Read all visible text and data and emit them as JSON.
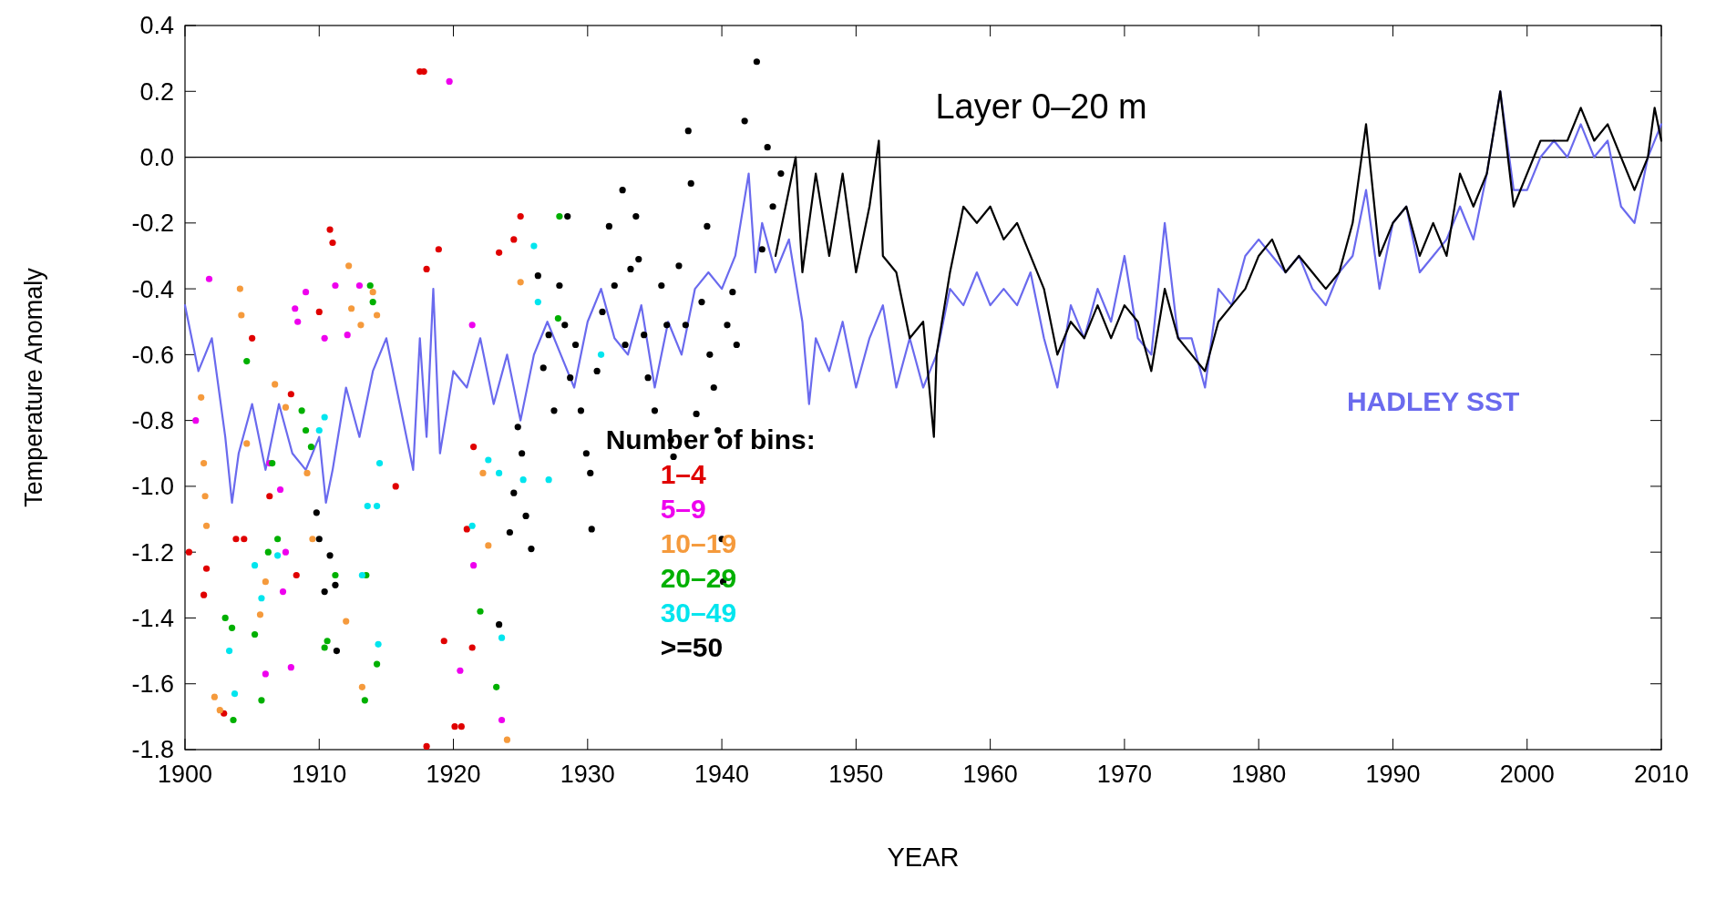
{
  "chart_data": {
    "type": "scatter",
    "title": "Layer 0–20 m",
    "xlabel": "YEAR",
    "ylabel": "Temperature Anomaly",
    "legend_title": "Number of bins:",
    "legend": "bottom",
    "grid": false,
    "xlim": [
      1900,
      2010
    ],
    "xticks": [
      1900,
      1910,
      1920,
      1930,
      1940,
      1950,
      1960,
      1970,
      1980,
      1990,
      2000,
      2010
    ],
    "ylim": [
      -1.8,
      0.4
    ],
    "yticks": [
      -1.8,
      -1.6,
      -1.4,
      -1.2,
      {
        "value": -1,
        "label": "-1.0"
      },
      -0.8,
      -0.6,
      -0.4,
      -0.2,
      {
        "value": 0,
        "label": "0.0"
      },
      0.2,
      0.4
    ],
    "ref_lines": [
      {
        "axis": "y",
        "value": 0,
        "color": "#000000"
      }
    ],
    "series": [
      {
        "name": "HADLEY SST",
        "type": "line",
        "color": "#6a6aee",
        "x": [
          1900,
          1901,
          1902,
          1903,
          1903.5,
          1904,
          1905,
          1906,
          1907,
          1908,
          1909,
          1910,
          1910.5,
          1911,
          1912,
          1913,
          1914,
          1915,
          1916,
          1917,
          1917.5,
          1918,
          1918.5,
          1919,
          1920,
          1921,
          1922,
          1923,
          1924,
          1925,
          1926,
          1927,
          1928,
          1929,
          1930,
          1931,
          1932,
          1933,
          1934,
          1935,
          1936,
          1937,
          1938,
          1939,
          1940,
          1941,
          1942,
          1942.5,
          1943,
          1944,
          1945,
          1946,
          1946.5,
          1947,
          1948,
          1949,
          1950,
          1951,
          1952,
          1953,
          1954,
          1955,
          1956,
          1957,
          1958,
          1959,
          1960,
          1961,
          1962,
          1963,
          1964,
          1965,
          1966,
          1967,
          1968,
          1969,
          1970,
          1971,
          1972,
          1973,
          1974,
          1975,
          1976,
          1977,
          1978,
          1979,
          1980,
          1981,
          1982,
          1983,
          1984,
          1985,
          1986,
          1987,
          1988,
          1989,
          1990,
          1991,
          1992,
          1993,
          1994,
          1995,
          1996,
          1997,
          1998,
          1999,
          2000,
          2001,
          2002,
          2003,
          2004,
          2005,
          2006,
          2007,
          2008,
          2009,
          2010
        ],
        "values": [
          -0.45,
          -0.65,
          -0.55,
          -0.85,
          -1.05,
          -0.9,
          -0.75,
          -0.95,
          -0.75,
          -0.9,
          -0.95,
          -0.85,
          -1.05,
          -0.95,
          -0.7,
          -0.85,
          -0.65,
          -0.55,
          -0.75,
          -0.95,
          -0.55,
          -0.85,
          -0.4,
          -0.9,
          -0.65,
          -0.7,
          -0.55,
          -0.75,
          -0.6,
          -0.8,
          -0.6,
          -0.5,
          -0.6,
          -0.7,
          -0.5,
          -0.4,
          -0.55,
          -0.6,
          -0.45,
          -0.7,
          -0.5,
          -0.6,
          -0.4,
          -0.35,
          -0.4,
          -0.3,
          -0.05,
          -0.35,
          -0.2,
          -0.35,
          -0.25,
          -0.5,
          -0.75,
          -0.55,
          -0.65,
          -0.5,
          -0.7,
          -0.55,
          -0.45,
          -0.7,
          -0.55,
          -0.7,
          -0.6,
          -0.4,
          -0.45,
          -0.35,
          -0.45,
          -0.4,
          -0.45,
          -0.35,
          -0.55,
          -0.7,
          -0.45,
          -0.55,
          -0.4,
          -0.5,
          -0.3,
          -0.55,
          -0.6,
          -0.2,
          -0.55,
          -0.55,
          -0.7,
          -0.4,
          -0.45,
          -0.3,
          -0.25,
          -0.3,
          -0.35,
          -0.3,
          -0.4,
          -0.45,
          -0.35,
          -0.3,
          -0.1,
          -0.4,
          -0.2,
          -0.15,
          -0.35,
          -0.3,
          -0.25,
          -0.15,
          -0.25,
          -0.05,
          0.2,
          -0.1,
          -0.1,
          0.0,
          0.05,
          0.0,
          0.1,
          0.0,
          0.05,
          -0.15,
          -0.2,
          0.0,
          0.1
        ]
      },
      {
        "type": "line",
        "color": "#000000",
        "x": [
          1944,
          1945,
          1945.5,
          1946,
          1947,
          1948,
          1949,
          1950,
          1951,
          1951.7,
          1952,
          1953,
          1954,
          1955,
          1955.8,
          1956,
          1957,
          1958,
          1959,
          1960,
          1961,
          1962,
          1963,
          1964,
          1965,
          1966,
          1967,
          1968,
          1969,
          1970,
          1971,
          1972,
          1973,
          1974,
          1975,
          1976,
          1977,
          1978,
          1979,
          1980,
          1981,
          1982,
          1983,
          1984,
          1985,
          1986,
          1987,
          1988,
          1989,
          1990,
          1991,
          1992,
          1993,
          1994,
          1995,
          1996,
          1997,
          1998,
          1999,
          2000,
          2001,
          2002,
          2003,
          2004,
          2005,
          2006,
          2007,
          2008,
          2009,
          2009.5,
          2010
        ],
        "values": [
          -0.3,
          -0.1,
          0.0,
          -0.35,
          -0.05,
          -0.3,
          -0.05,
          -0.35,
          -0.15,
          0.05,
          -0.3,
          -0.35,
          -0.55,
          -0.5,
          -0.85,
          -0.6,
          -0.35,
          -0.15,
          -0.2,
          -0.15,
          -0.25,
          -0.2,
          -0.3,
          -0.4,
          -0.6,
          -0.5,
          -0.55,
          -0.45,
          -0.55,
          -0.45,
          -0.5,
          -0.65,
          -0.4,
          -0.55,
          -0.6,
          -0.65,
          -0.5,
          -0.45,
          -0.4,
          -0.3,
          -0.25,
          -0.35,
          -0.3,
          -0.35,
          -0.4,
          -0.35,
          -0.2,
          0.1,
          -0.3,
          -0.2,
          -0.15,
          -0.3,
          -0.2,
          -0.3,
          -0.05,
          -0.15,
          -0.05,
          0.2,
          -0.15,
          -0.05,
          0.05,
          0.05,
          0.05,
          0.15,
          0.05,
          0.1,
          0.0,
          -0.1,
          0.0,
          0.15,
          0.05
        ]
      },
      {
        "name": "1–4",
        "marker": "circle",
        "color": "#e00000",
        "x": [
          1900.3,
          1901.4,
          1901.6,
          1902.9,
          1903.8,
          1904.4,
          1905,
          1906.3,
          1907.9,
          1908.3,
          1910,
          1910.8,
          1911,
          1915.7,
          1917.5,
          1917.8,
          1918,
          1918,
          1918.9,
          1919.3,
          1920.1,
          1920.6,
          1921,
          1921.4,
          1921.5,
          1923.4,
          1924.5,
          1925
        ],
        "values": [
          -1.2,
          -1.33,
          -1.25,
          -1.69,
          -1.16,
          -1.16,
          -0.55,
          -1.03,
          -0.72,
          -1.27,
          -0.47,
          -0.22,
          -0.26,
          -1.0,
          0.26,
          0.26,
          -0.34,
          -1.79,
          -0.28,
          -1.47,
          -1.73,
          -1.73,
          -1.13,
          -1.49,
          -0.88,
          -0.29,
          -0.25,
          -0.18
        ]
      },
      {
        "name": "5–9",
        "marker": "circle",
        "color": "#ee00ee",
        "x": [
          1900.8,
          1901.8,
          1906,
          1906.3,
          1907.1,
          1907.3,
          1907.5,
          1907.9,
          1908.2,
          1908.4,
          1909,
          1910.4,
          1911.2,
          1912.1,
          1913,
          1919.7,
          1920.5,
          1921.4,
          1921.5,
          1923.6
        ],
        "values": [
          -0.8,
          -0.37,
          -1.57,
          -0.93,
          -1.01,
          -1.32,
          -1.2,
          -1.55,
          -0.46,
          -0.5,
          -0.41,
          -0.55,
          -0.39,
          -0.54,
          -0.39,
          0.23,
          -1.56,
          -0.51,
          -1.24,
          -1.71
        ]
      },
      {
        "name": "10–19",
        "marker": "circle",
        "color": "#f59a3c",
        "x": [
          1901.2,
          1901.4,
          1901.5,
          1901.6,
          1902.2,
          1902.6,
          1904.1,
          1904.2,
          1904.6,
          1905.6,
          1906,
          1906.7,
          1907.5,
          1909.1,
          1909.5,
          1912,
          1912.2,
          1912.4,
          1913.1,
          1913.2,
          1914,
          1914.3,
          1922.2,
          1922.6,
          1924,
          1925
        ],
        "values": [
          -0.73,
          -0.93,
          -1.03,
          -1.12,
          -1.64,
          -1.68,
          -0.4,
          -0.48,
          -0.87,
          -1.39,
          -1.29,
          -0.69,
          -0.76,
          -0.96,
          -1.16,
          -1.41,
          -0.33,
          -0.46,
          -0.51,
          -1.61,
          -0.41,
          -0.48,
          -0.96,
          -1.18,
          -1.77,
          -0.38
        ]
      },
      {
        "name": "20–29",
        "marker": "circle",
        "color": "#00b000",
        "x": [
          1903,
          1903.5,
          1903.6,
          1904.6,
          1905.2,
          1905.7,
          1906.2,
          1906.5,
          1906.9,
          1908.7,
          1909,
          1909.4,
          1910.4,
          1910.6,
          1911.2,
          1913.4,
          1913.5,
          1913.8,
          1914,
          1914.3,
          1922,
          1923.2,
          1927.8,
          1927.9
        ],
        "values": [
          -1.4,
          -1.43,
          -1.71,
          -0.62,
          -1.45,
          -1.65,
          -1.2,
          -0.93,
          -1.16,
          -0.77,
          -0.83,
          -0.88,
          -1.49,
          -1.47,
          -1.27,
          -1.65,
          -1.27,
          -0.39,
          -0.44,
          -1.54,
          -1.38,
          -1.61,
          -0.49,
          -0.18
        ]
      },
      {
        "name": "30–49",
        "marker": "circle",
        "color": "#00e5ee",
        "x": [
          1903.3,
          1903.7,
          1905.2,
          1905.7,
          1906.9,
          1910,
          1910.4,
          1913.2,
          1913.6,
          1914.3,
          1914.4,
          1914.5,
          1921.4,
          1922.6,
          1923.4,
          1923.6,
          1925.2,
          1926,
          1926.3,
          1927.1,
          1931
        ],
        "values": [
          -1.5,
          -1.63,
          -1.24,
          -1.34,
          -1.21,
          -0.83,
          -0.79,
          -1.27,
          -1.06,
          -1.06,
          -1.48,
          -0.93,
          -1.12,
          -0.92,
          -0.96,
          -1.46,
          -0.98,
          -0.27,
          -0.44,
          -0.98,
          -0.6
        ]
      },
      {
        "name": ">=50",
        "marker": "circle",
        "color": "#000000",
        "x": [
          1909.8,
          1910,
          1910.4,
          1910.8,
          1911.2,
          1911.3,
          1923.4,
          1924.2,
          1924.5,
          1924.8,
          1925.1,
          1925.4,
          1925.8,
          1926.3,
          1926.7,
          1927.1,
          1927.5,
          1927.9,
          1928.3,
          1928.5,
          1928.7,
          1929.1,
          1929.5,
          1929.9,
          1930.2,
          1930.3,
          1930.7,
          1931.1,
          1931.6,
          1932,
          1932.6,
          1932.8,
          1933.2,
          1933.6,
          1933.8,
          1934.2,
          1934.5,
          1935,
          1935.5,
          1935.9,
          1936.2,
          1936.4,
          1936.8,
          1937.3,
          1937.5,
          1937.7,
          1938.1,
          1938.5,
          1938.9,
          1939.1,
          1939.4,
          1939.7,
          1940,
          1940.1,
          1940.4,
          1940.8,
          1941.1,
          1941.7,
          1942.6,
          1943,
          1943.4,
          1943.8,
          1944.4
        ],
        "values": [
          -1.08,
          -1.16,
          -1.32,
          -1.21,
          -1.3,
          -1.5,
          -1.42,
          -1.14,
          -1.02,
          -0.82,
          -0.9,
          -1.09,
          -1.19,
          -0.36,
          -0.64,
          -0.54,
          -0.77,
          -0.39,
          -0.51,
          -0.18,
          -0.67,
          -0.57,
          -0.77,
          -0.9,
          -0.96,
          -1.13,
          -0.65,
          -0.47,
          -0.21,
          -0.39,
          -0.1,
          -0.57,
          -0.34,
          -0.18,
          -0.31,
          -0.54,
          -0.67,
          -0.77,
          -0.39,
          -0.51,
          -0.86,
          -0.91,
          -0.33,
          -0.51,
          0.08,
          -0.08,
          -0.78,
          -0.44,
          -0.21,
          -0.6,
          -0.7,
          -0.83,
          -1.16,
          -1.29,
          -0.51,
          -0.41,
          -0.57,
          0.11,
          0.29,
          -0.28,
          0.03,
          -0.15,
          -0.05
        ]
      }
    ]
  }
}
